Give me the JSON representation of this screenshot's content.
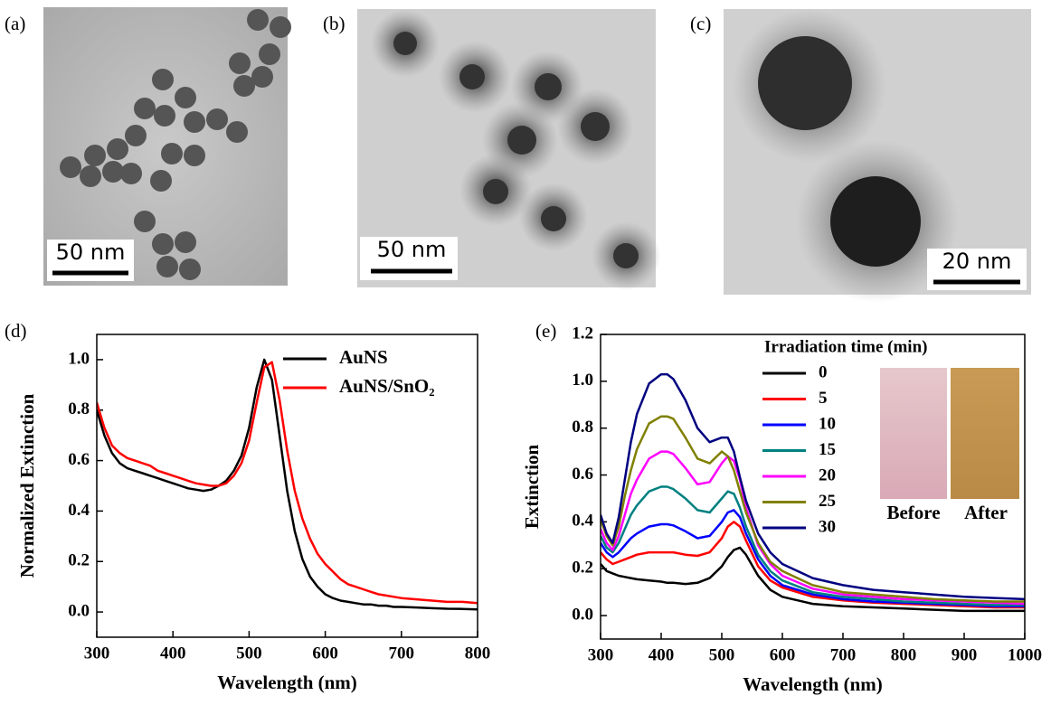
{
  "panels": [
    {
      "label": "(a)",
      "scale_bar": "50 nm"
    },
    {
      "label": "(b)",
      "scale_bar": "50 nm"
    },
    {
      "label": "(c)",
      "scale_bar": "20 nm"
    }
  ],
  "chart_data": [
    {
      "type": "line",
      "label": "(d)",
      "x_label": "Wavelength (nm)",
      "y_label": "Normalized Extinction",
      "xlim": [
        300,
        800
      ],
      "ylim": [
        -0.1,
        1.1
      ],
      "xticks": [
        300,
        400,
        500,
        600,
        700,
        800
      ],
      "yticks": [
        {
          "value": 0,
          "label": "0.0"
        },
        0.2,
        0.4,
        0.6,
        0.8,
        {
          "value": 1,
          "label": "1.0"
        }
      ],
      "legend": "upper right",
      "x": [
        300,
        310,
        320,
        330,
        340,
        350,
        360,
        370,
        380,
        390,
        400,
        410,
        420,
        430,
        440,
        450,
        460,
        470,
        480,
        490,
        500,
        510,
        520,
        530,
        540,
        550,
        560,
        570,
        580,
        590,
        600,
        610,
        620,
        630,
        640,
        650,
        660,
        670,
        680,
        690,
        700,
        720,
        740,
        760,
        780,
        800
      ],
      "series": [
        {
          "name": "AuNS",
          "color": "#000000",
          "values": [
            0.8,
            0.7,
            0.63,
            0.59,
            0.57,
            0.56,
            0.55,
            0.54,
            0.53,
            0.52,
            0.51,
            0.5,
            0.49,
            0.485,
            0.48,
            0.485,
            0.5,
            0.52,
            0.56,
            0.62,
            0.73,
            0.89,
            1.0,
            0.92,
            0.7,
            0.48,
            0.32,
            0.21,
            0.14,
            0.1,
            0.07,
            0.055,
            0.045,
            0.04,
            0.035,
            0.03,
            0.03,
            0.025,
            0.025,
            0.02,
            0.02,
            0.018,
            0.015,
            0.013,
            0.012,
            0.01
          ]
        },
        {
          "name": "AuNS/SnO₂",
          "color": "#ff0000",
          "values": [
            0.83,
            0.73,
            0.66,
            0.63,
            0.61,
            0.6,
            0.59,
            0.58,
            0.56,
            0.55,
            0.54,
            0.53,
            0.52,
            0.51,
            0.505,
            0.5,
            0.5,
            0.51,
            0.54,
            0.59,
            0.68,
            0.83,
            0.97,
            0.99,
            0.84,
            0.64,
            0.48,
            0.37,
            0.29,
            0.23,
            0.19,
            0.16,
            0.13,
            0.11,
            0.1,
            0.09,
            0.08,
            0.07,
            0.065,
            0.06,
            0.055,
            0.05,
            0.045,
            0.04,
            0.04,
            0.035
          ]
        }
      ]
    },
    {
      "type": "line",
      "label": "(e)",
      "x_label": "Wavelength (nm)",
      "y_label": "Extinction",
      "xlim": [
        300,
        1000
      ],
      "ylim": [
        -0.1,
        1.2
      ],
      "xticks": [
        300,
        400,
        500,
        600,
        700,
        800,
        900,
        1000
      ],
      "yticks": [
        {
          "value": 0,
          "label": "0.0"
        },
        0.2,
        0.4,
        0.6,
        0.8,
        {
          "value": 1,
          "label": "1.0"
        },
        1.2
      ],
      "legend_title": "Irradiation time (min)",
      "legend": "upper right",
      "inset_labels": [
        "Before",
        "After"
      ],
      "x": [
        300,
        310,
        320,
        330,
        340,
        350,
        360,
        380,
        400,
        410,
        420,
        440,
        460,
        480,
        500,
        510,
        520,
        530,
        540,
        560,
        580,
        600,
        650,
        700,
        750,
        800,
        850,
        900,
        950,
        1000
      ],
      "series": [
        {
          "name": "0",
          "color": "#000000",
          "values": [
            0.22,
            0.19,
            0.18,
            0.17,
            0.165,
            0.16,
            0.155,
            0.15,
            0.145,
            0.14,
            0.14,
            0.135,
            0.14,
            0.16,
            0.21,
            0.25,
            0.28,
            0.29,
            0.26,
            0.17,
            0.11,
            0.08,
            0.05,
            0.04,
            0.035,
            0.03,
            0.025,
            0.02,
            0.02,
            0.02
          ]
        },
        {
          "name": "5",
          "color": "#ff0000",
          "values": [
            0.27,
            0.24,
            0.22,
            0.23,
            0.24,
            0.25,
            0.26,
            0.27,
            0.27,
            0.27,
            0.27,
            0.26,
            0.255,
            0.27,
            0.33,
            0.38,
            0.4,
            0.38,
            0.32,
            0.21,
            0.15,
            0.12,
            0.08,
            0.065,
            0.055,
            0.05,
            0.045,
            0.04,
            0.035,
            0.035
          ]
        },
        {
          "name": "10",
          "color": "#0000ff",
          "values": [
            0.31,
            0.27,
            0.25,
            0.27,
            0.3,
            0.33,
            0.35,
            0.38,
            0.39,
            0.39,
            0.385,
            0.36,
            0.33,
            0.34,
            0.4,
            0.44,
            0.45,
            0.42,
            0.35,
            0.24,
            0.17,
            0.13,
            0.09,
            0.07,
            0.06,
            0.055,
            0.05,
            0.045,
            0.04,
            0.04
          ]
        },
        {
          "name": "15",
          "color": "#008080",
          "values": [
            0.34,
            0.29,
            0.27,
            0.31,
            0.37,
            0.43,
            0.47,
            0.53,
            0.55,
            0.55,
            0.54,
            0.5,
            0.45,
            0.44,
            0.5,
            0.53,
            0.52,
            0.46,
            0.38,
            0.26,
            0.19,
            0.15,
            0.1,
            0.08,
            0.07,
            0.06,
            0.055,
            0.05,
            0.045,
            0.045
          ]
        },
        {
          "name": "20",
          "color": "#ff00ff",
          "values": [
            0.37,
            0.31,
            0.28,
            0.34,
            0.43,
            0.52,
            0.58,
            0.67,
            0.7,
            0.7,
            0.69,
            0.63,
            0.56,
            0.57,
            0.65,
            0.68,
            0.66,
            0.58,
            0.46,
            0.3,
            0.22,
            0.17,
            0.115,
            0.09,
            0.08,
            0.07,
            0.065,
            0.06,
            0.055,
            0.05
          ]
        },
        {
          "name": "25",
          "color": "#808000",
          "values": [
            0.41,
            0.34,
            0.3,
            0.38,
            0.51,
            0.62,
            0.71,
            0.82,
            0.85,
            0.85,
            0.84,
            0.76,
            0.67,
            0.65,
            0.7,
            0.68,
            0.62,
            0.53,
            0.44,
            0.31,
            0.23,
            0.19,
            0.13,
            0.1,
            0.09,
            0.08,
            0.07,
            0.065,
            0.06,
            0.06
          ]
        },
        {
          "name": "30",
          "color": "#000080",
          "values": [
            0.43,
            0.35,
            0.31,
            0.42,
            0.58,
            0.74,
            0.86,
            0.99,
            1.03,
            1.03,
            1.01,
            0.92,
            0.8,
            0.74,
            0.76,
            0.76,
            0.7,
            0.59,
            0.49,
            0.35,
            0.27,
            0.22,
            0.16,
            0.13,
            0.11,
            0.1,
            0.09,
            0.08,
            0.075,
            0.07
          ]
        }
      ]
    }
  ]
}
